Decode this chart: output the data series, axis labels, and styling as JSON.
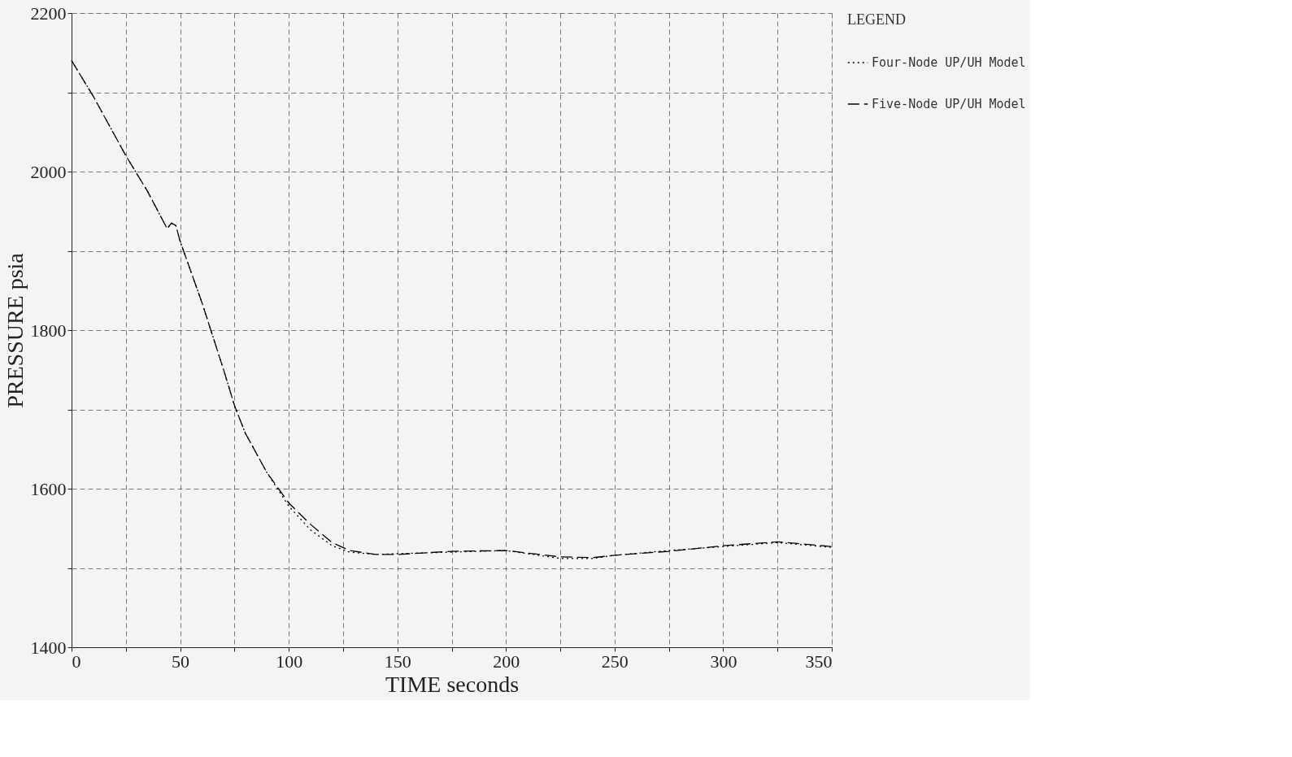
{
  "chart_data": {
    "type": "line",
    "xlabel": "TIME    seconds",
    "ylabel": "PRESSURE    psia",
    "legend_title": "LEGEND",
    "x": [
      0,
      10,
      25,
      35,
      44,
      46,
      48,
      50,
      60,
      70,
      75,
      80,
      90,
      100,
      110,
      120,
      128,
      140,
      150,
      175,
      200,
      225,
      240,
      250,
      275,
      300,
      325,
      350
    ],
    "series": [
      {
        "name": "Four-Node UP/UH Model",
        "color": "#000000",
        "line_style": "dotted",
        "values": [
          2140,
          2095,
          2020,
          1975,
          1928,
          1935,
          1932,
          1912,
          1835,
          1750,
          1705,
          1670,
          1620,
          1578,
          1548,
          1528,
          1520,
          1517,
          1518,
          1520,
          1522,
          1512,
          1512,
          1516,
          1522,
          1527,
          1532,
          1526
        ]
      },
      {
        "name": "Five-Node UP/UH Model",
        "color": "#000000",
        "line_style": "dashed",
        "values": [
          2140,
          2095,
          2020,
          1975,
          1928,
          1935,
          1932,
          1912,
          1835,
          1750,
          1705,
          1670,
          1620,
          1582,
          1555,
          1532,
          1522,
          1517,
          1517,
          1521,
          1522,
          1514,
          1513,
          1516,
          1521,
          1528,
          1533,
          1527
        ]
      }
    ],
    "xlim": [
      0,
      350
    ],
    "ylim": [
      1400,
      2200
    ],
    "xticks": [
      0,
      {
        "value": 25,
        "label": null
      },
      50,
      {
        "value": 75,
        "label": null
      },
      100,
      {
        "value": 125,
        "label": null
      },
      150,
      {
        "value": 175,
        "label": null
      },
      200,
      {
        "value": 225,
        "label": null
      },
      250,
      {
        "value": 275,
        "label": null
      },
      300,
      {
        "value": 325,
        "label": null
      },
      350
    ],
    "yticks": [
      1400,
      {
        "value": 1500,
        "label": null
      },
      1600,
      {
        "value": 1700,
        "label": null
      },
      1800,
      {
        "value": 1900,
        "label": null
      },
      2000,
      {
        "value": 2100,
        "label": null
      },
      2200
    ],
    "grid": true,
    "legend": "top right",
    "marker": "none"
  }
}
